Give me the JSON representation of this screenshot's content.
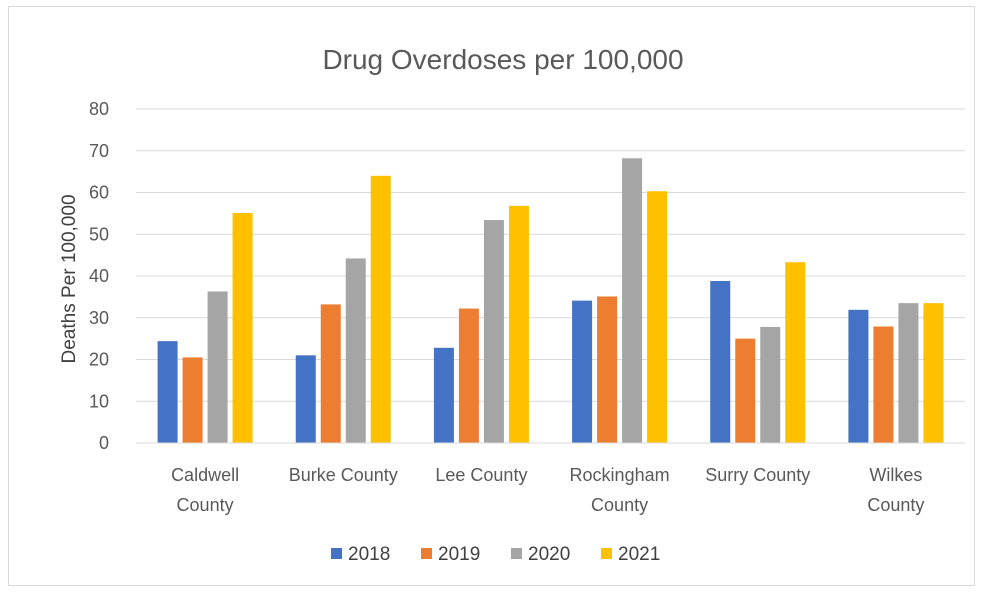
{
  "chart_data": {
    "type": "bar",
    "title": "Drug Overdoses per 100,000",
    "xlabel": "",
    "ylabel": "Deaths Per 100,000",
    "ylim": [
      0,
      80
    ],
    "yticks": [
      0,
      10,
      20,
      30,
      40,
      50,
      60,
      70,
      80
    ],
    "grid": true,
    "legend_position": "bottom",
    "categories": [
      [
        "Caldwell",
        "County"
      ],
      [
        "Burke County"
      ],
      [
        "Lee County"
      ],
      [
        "Rockingham",
        "County"
      ],
      [
        "Surry County"
      ],
      [
        "Wilkes",
        "County"
      ]
    ],
    "series": [
      {
        "name": "2018",
        "color": "#4472C4",
        "values": [
          24.4,
          21.0,
          22.8,
          34.1,
          38.8,
          31.9
        ]
      },
      {
        "name": "2019",
        "color": "#ED7D31",
        "values": [
          20.5,
          33.2,
          32.2,
          35.1,
          25.0,
          27.9
        ]
      },
      {
        "name": "2020",
        "color": "#A5A5A5",
        "values": [
          36.3,
          44.2,
          53.4,
          68.2,
          27.8,
          33.5
        ]
      },
      {
        "name": "2021",
        "color": "#FFC000",
        "values": [
          55.1,
          64.0,
          56.8,
          60.3,
          43.3,
          33.5
        ]
      }
    ]
  }
}
